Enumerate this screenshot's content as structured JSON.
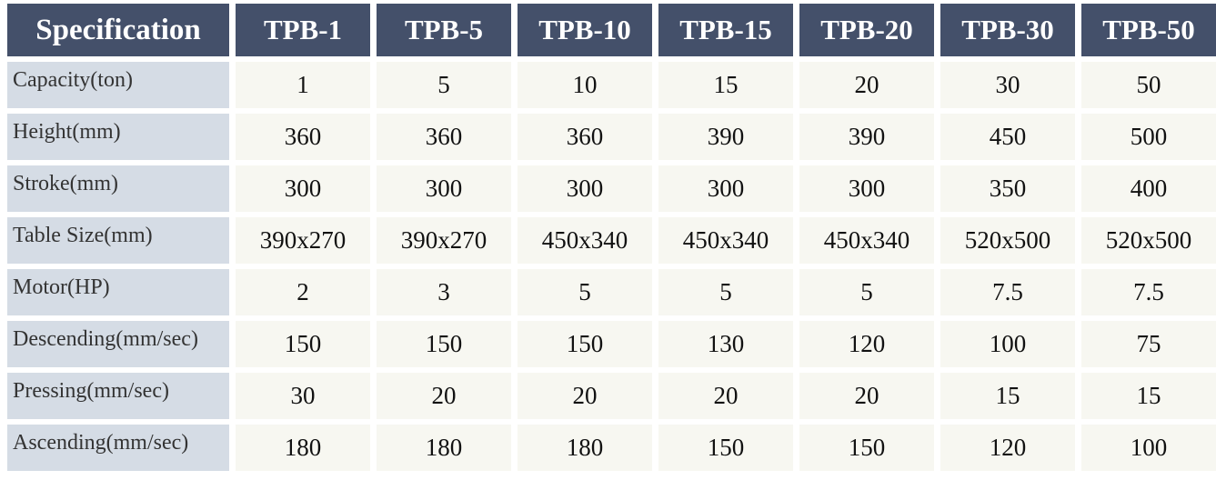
{
  "table": {
    "header": [
      "Specification",
      "TPB-1",
      "TPB-5",
      "TPB-10",
      "TPB-15",
      "TPB-20",
      "TPB-30",
      "TPB-50"
    ],
    "rows": [
      [
        "Capacity(ton)",
        1,
        5,
        10,
        15,
        20,
        30,
        50
      ],
      [
        "Height(mm)",
        360,
        360,
        360,
        390,
        390,
        450,
        500
      ],
      [
        "Stroke(mm)",
        300,
        300,
        300,
        300,
        300,
        350,
        400
      ],
      [
        "Table Size(mm)",
        "390x270",
        "390x270",
        "450x340",
        "450x340",
        "450x340",
        "520x500",
        "520x500"
      ],
      [
        "Motor(HP)",
        2,
        3,
        5,
        5,
        5,
        7.5,
        7.5
      ],
      [
        "Descending(mm/sec)",
        150,
        150,
        150,
        130,
        120,
        100,
        75
      ],
      [
        "Pressing(mm/sec)",
        30,
        20,
        20,
        20,
        20,
        15,
        15
      ],
      [
        "Ascending(mm/sec)",
        180,
        180,
        180,
        150,
        150,
        120,
        100
      ]
    ]
  }
}
